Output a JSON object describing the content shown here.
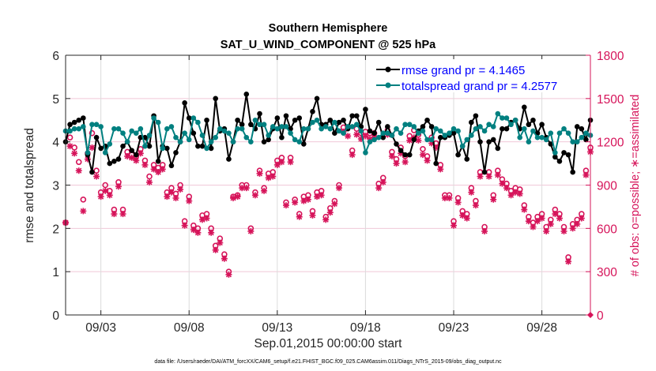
{
  "chart_data": {
    "type": "line",
    "title": "Southern Hemisphere",
    "subtitle": "SAT_U_WIND_COMPONENT @ 525 hPa",
    "xlabel": "Sep.01,2015 00:00:00 start",
    "ylabel": "rmse and totalspread",
    "y2label": "# of obs: o=possible; ∗=assimilated",
    "footnote": "data file: /Users/raeder/DAI/ATM_forcXX/CAM6_setup/f.e21.FHIST_BGC.f09_025.CAM6assim.011/Diags_NTrS_2015-09/obs_diag_output.nc",
    "xlim_days": [
      0,
      29.75
    ],
    "x_ticks": [
      {
        "day": 2,
        "label": "09/03"
      },
      {
        "day": 7,
        "label": "09/08"
      },
      {
        "day": 12,
        "label": "09/13"
      },
      {
        "day": 17,
        "label": "09/18"
      },
      {
        "day": 22,
        "label": "09/23"
      },
      {
        "day": 27,
        "label": "09/28"
      }
    ],
    "ylim": [
      0,
      6
    ],
    "y_ticks": [
      "0",
      "1",
      "2",
      "3",
      "4",
      "5",
      "6"
    ],
    "y2lim": [
      0,
      1800
    ],
    "y2_ticks": [
      "0",
      "300",
      "600",
      "900",
      "1200",
      "1500",
      "1800"
    ],
    "grid": true,
    "legend": {
      "placement": "top-right",
      "entries": [
        {
          "label": "rmse grand pr = 4.1465",
          "color": "#000000"
        },
        {
          "label": "totalspread grand pr = 4.2577",
          "color": "#008080"
        }
      ]
    },
    "x_step_days": 0.25,
    "series": [
      {
        "name": "rmse",
        "axis": "left",
        "color": "#000000",
        "values": [
          4.0,
          4.4,
          4.45,
          4.5,
          4.55,
          3.7,
          3.3,
          4.1,
          3.85,
          3.9,
          3.5,
          3.55,
          3.6,
          3.9,
          4.0,
          3.8,
          3.7,
          4.1,
          4.1,
          3.9,
          4.6,
          3.55,
          3.9,
          3.85,
          3.45,
          3.75,
          4.0,
          4.9,
          4.55,
          4.2,
          3.9,
          3.9,
          4.5,
          3.85,
          5.0,
          4.25,
          4.3,
          3.6,
          4.0,
          4.5,
          4.4,
          5.1,
          4.4,
          4.3,
          4.65,
          4.0,
          4.05,
          4.3,
          4.55,
          4.1,
          4.6,
          4.3,
          4.5,
          4.55,
          3.95,
          4.3,
          4.7,
          5.0,
          4.4,
          4.4,
          4.5,
          4.2,
          4.45,
          4.5,
          4.3,
          4.6,
          4.6,
          4.35,
          4.75,
          4.25,
          4.2,
          4.45,
          4.1,
          4.35,
          4.15,
          3.95,
          3.8,
          3.7,
          3.7,
          4.05,
          4.25,
          4.35,
          4.5,
          4.35,
          3.5,
          4.1,
          4.1,
          4.15,
          4.2,
          3.7,
          3.9,
          3.6,
          4.45,
          4.6,
          4.0,
          3.3,
          4.0,
          4.05,
          3.85,
          4.3,
          4.3,
          4.45,
          4.5,
          4.3,
          4.8,
          4.4,
          4.5,
          4.2,
          4.4,
          4.1,
          3.95,
          3.65,
          3.55,
          3.75,
          3.7,
          3.3,
          4.35,
          4.3,
          4.05,
          4.5,
          4.1,
          4.25,
          3.95,
          4.6,
          4.65
        ]
      },
      {
        "name": "totalspread",
        "axis": "left",
        "color": "#008080",
        "values": [
          4.25,
          4.25,
          4.3,
          4.3,
          4.35,
          3.75,
          4.4,
          4.4,
          4.35,
          3.75,
          3.95,
          4.3,
          4.3,
          4.2,
          4.0,
          4.25,
          4.2,
          4.3,
          3.9,
          4.15,
          4.55,
          4.45,
          3.85,
          4.3,
          4.35,
          4.1,
          4.0,
          4.2,
          4.05,
          4.55,
          4.45,
          4.15,
          3.85,
          4.0,
          4.1,
          4.3,
          4.25,
          4.2,
          4.0,
          4.3,
          4.3,
          4.1,
          4.0,
          4.5,
          4.4,
          4.4,
          4.15,
          4.35,
          4.3,
          4.35,
          4.35,
          4.2,
          4.05,
          4.0,
          4.3,
          4.3,
          4.45,
          4.5,
          4.3,
          4.35,
          4.3,
          4.45,
          4.25,
          4.2,
          4.35,
          4.35,
          4.4,
          4.25,
          3.75,
          4.0,
          4.05,
          4.1,
          4.2,
          4.2,
          4.15,
          4.3,
          4.2,
          4.4,
          4.4,
          4.35,
          4.2,
          4.25,
          4.05,
          4.05,
          4.3,
          4.25,
          4.15,
          4.2,
          4.3,
          4.25,
          3.9,
          4.05,
          4.15,
          4.3,
          4.35,
          4.25,
          4.4,
          4.35,
          4.65,
          4.55,
          4.55,
          4.4,
          4.5,
          4.1,
          4.3,
          4.0,
          4.25,
          4.1,
          4.1,
          4.05,
          4.2,
          3.75,
          4.2,
          4.3,
          4.2,
          4.0,
          4.0,
          4.1,
          4.2,
          4.15,
          4.2,
          4.0,
          4.1,
          4.0,
          3.95
        ]
      },
      {
        "name": "obs_possible",
        "axis": "right",
        "color": "#d6145a",
        "marker": "o",
        "values": [
          640,
          1230,
          1160,
          1060,
          800,
          1120,
          1260,
          1000,
          850,
          900,
          860,
          730,
          920,
          730,
          1130,
          1110,
          1100,
          1150,
          1070,
          960,
          1040,
          1020,
          1040,
          850,
          880,
          840,
          900,
          650,
          820,
          620,
          600,
          690,
          700,
          600,
          480,
          530,
          420,
          300,
          820,
          830,
          900,
          900,
          600,
          850,
          1000,
          880,
          980,
          990,
          1070,
          1090,
          780,
          1090,
          800,
          700,
          820,
          830,
          720,
          850,
          860,
          680,
          740,
          790,
          900,
          1300,
          1300,
          1140,
          1290,
          1260,
          1270,
          1260,
          1260,
          910,
          950,
          1280,
          1130,
          1080,
          1160,
          1100,
          1240,
          1280,
          1250,
          1150,
          1100,
          1230,
          1190,
          1040,
          830,
          830,
          650,
          810,
          720,
          700,
          880,
          790,
          990,
          610,
          990,
          830,
          1000,
          940,
          910,
          860,
          880,
          870,
          760,
          680,
          640,
          680,
          700,
          610,
          660,
          730,
          700,
          610,
          400,
          630,
          660,
          700,
          1000,
          1160,
          1230,
          1220,
          1300,
          930,
          690
        ]
      },
      {
        "name": "obs_assimilated",
        "axis": "right",
        "color": "#d6145a",
        "marker": "*",
        "values": [
          640,
          1170,
          1120,
          1000,
          720,
          1080,
          1160,
          960,
          820,
          860,
          830,
          700,
          890,
          700,
          1100,
          1090,
          1070,
          1120,
          1040,
          920,
          1010,
          990,
          1010,
          820,
          850,
          810,
          870,
          620,
          790,
          590,
          570,
          660,
          670,
          570,
          450,
          500,
          390,
          280,
          810,
          820,
          880,
          880,
          580,
          830,
          980,
          860,
          950,
          960,
          1040,
          1060,
          760,
          1060,
          780,
          680,
          790,
          800,
          690,
          820,
          830,
          660,
          710,
          770,
          880,
          1270,
          1240,
          1110,
          1250,
          1220,
          1240,
          1220,
          1230,
          880,
          920,
          1250,
          1100,
          1050,
          1120,
          1060,
          1210,
          1230,
          1210,
          1110,
          1070,
          1190,
          1160,
          1010,
          810,
          810,
          620,
          780,
          690,
          670,
          850,
          760,
          960,
          580,
          960,
          800,
          970,
          910,
          880,
          830,
          850,
          840,
          730,
          650,
          610,
          650,
          670,
          580,
          630,
          700,
          670,
          580,
          370,
          600,
          630,
          670,
          970,
          1130,
          1190,
          1180,
          1260,
          900,
          660
        ]
      }
    ]
  }
}
